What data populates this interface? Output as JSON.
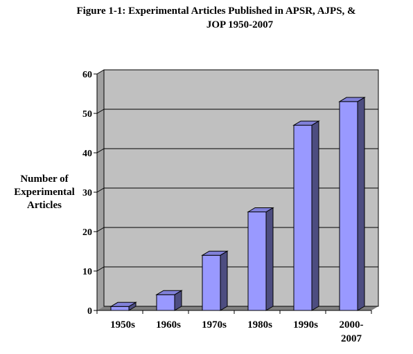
{
  "chart_data": {
    "type": "bar",
    "title_lines": [
      "Figure 1-1: Experimental Articles Published in APSR, AJPS, &",
      "JOP 1950-2007"
    ],
    "ylabel_lines": [
      "Number of",
      "Experimental",
      "Articles"
    ],
    "xlabel": "",
    "categories": [
      [
        "1950s"
      ],
      [
        "1960s"
      ],
      [
        "1970s"
      ],
      [
        "1980s"
      ],
      [
        "1990s"
      ],
      [
        "2000-",
        "2007"
      ]
    ],
    "values": [
      1,
      4,
      14,
      25,
      47,
      53
    ],
    "ylim": [
      0,
      60
    ],
    "yticks": [
      0,
      10,
      20,
      30,
      40,
      50,
      60
    ],
    "grid": true,
    "three_d": true,
    "colors": {
      "bar_front": "#9999ff",
      "bar_side": "#4d4d80",
      "bar_top": "#8080d9",
      "plot_wall": "#c0c0c0",
      "floor": "#808080",
      "gridline": "#000000"
    }
  }
}
